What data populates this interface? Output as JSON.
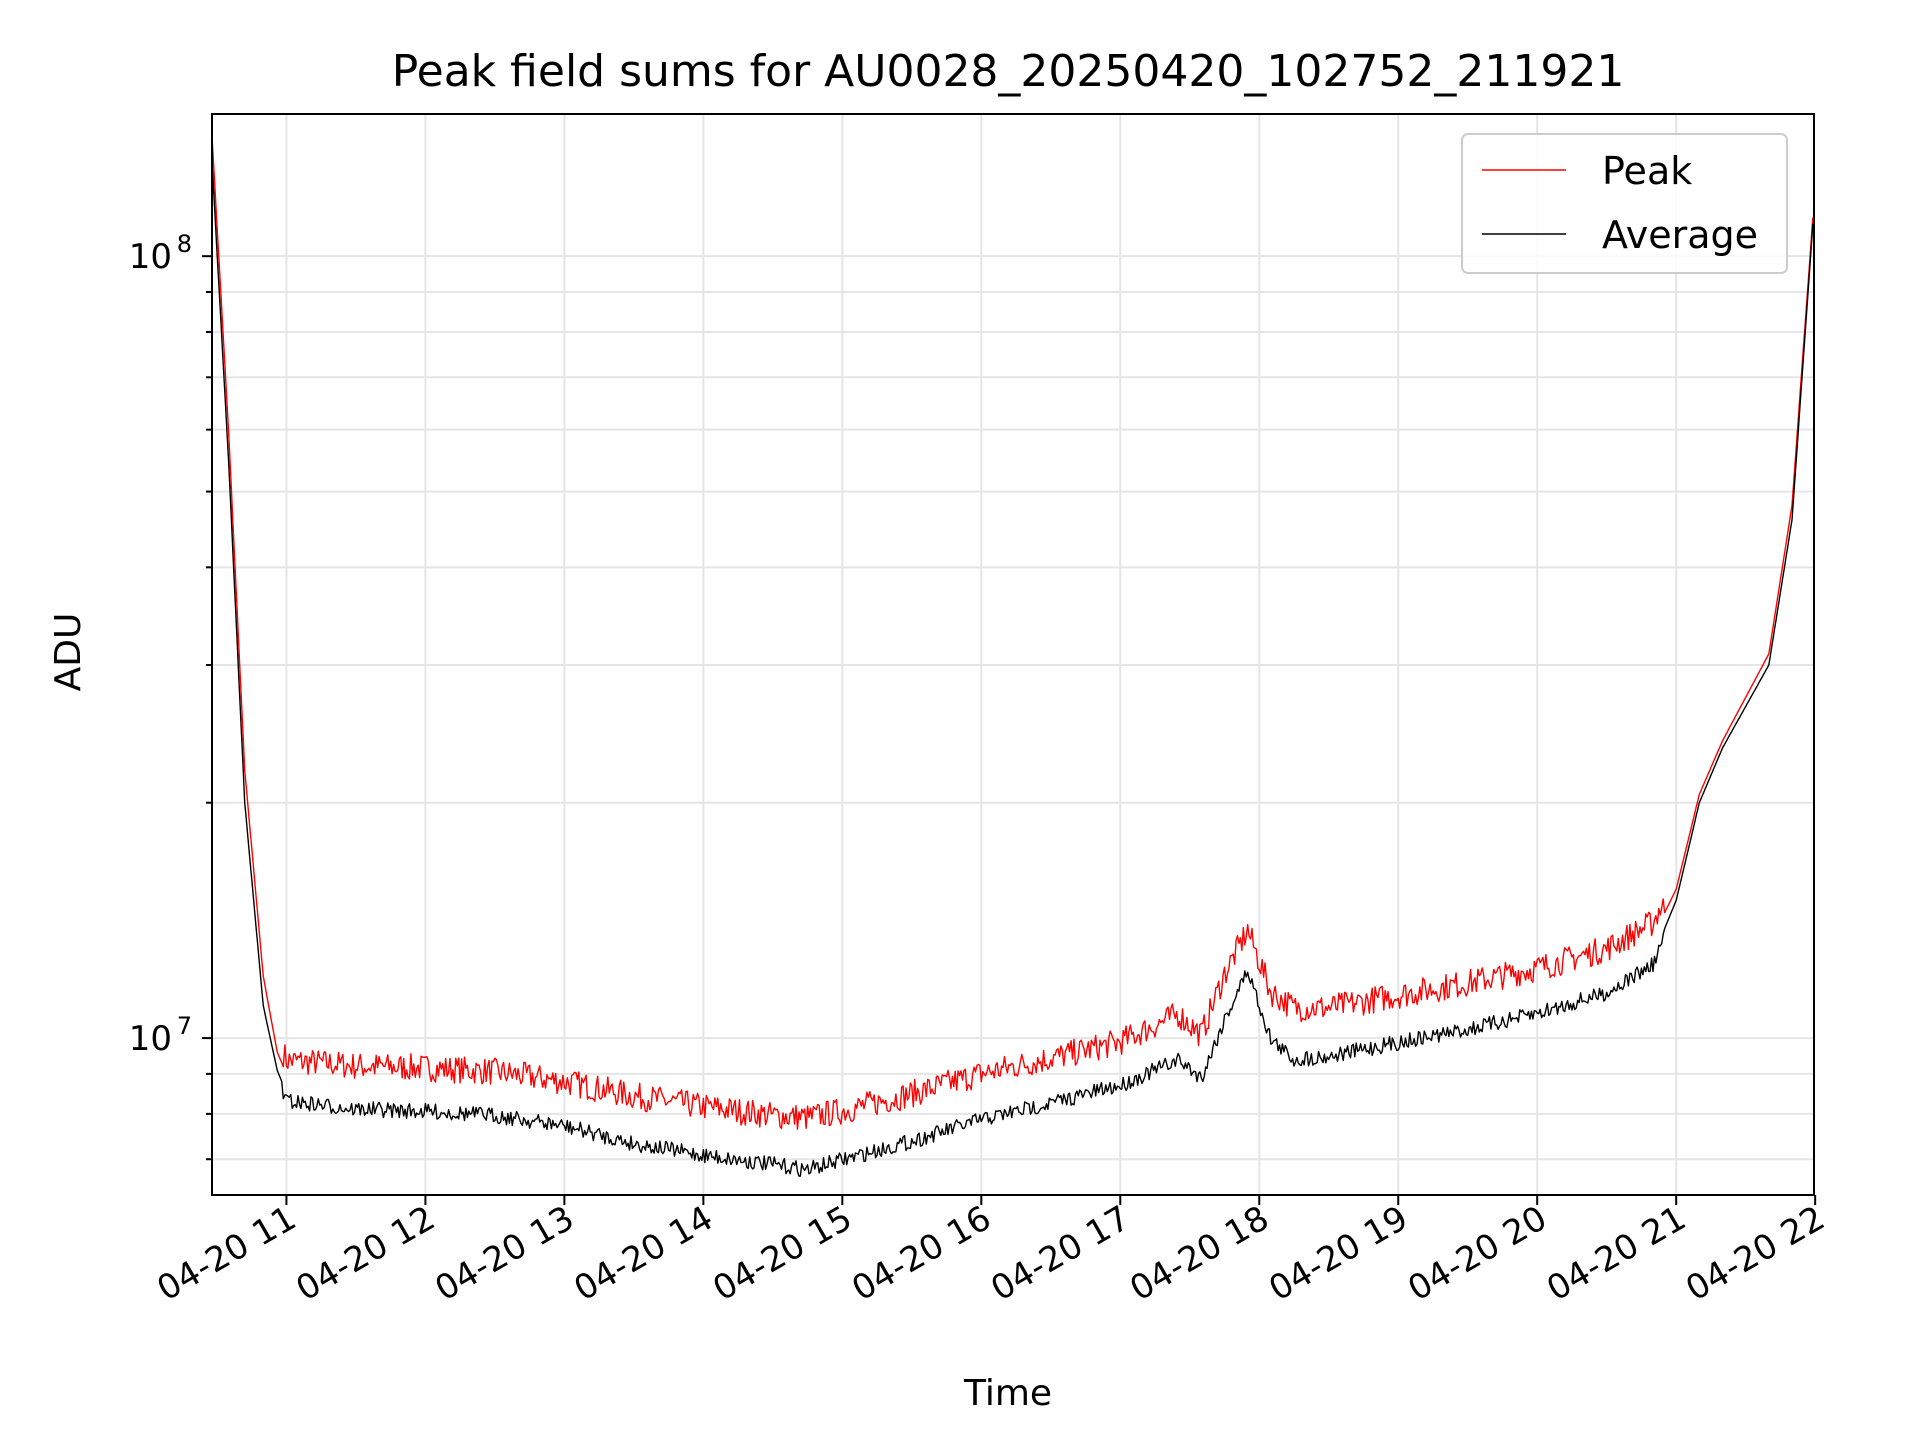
{
  "chart_data": {
    "type": "line",
    "title": "Peak field sums for AU0028_20250420_102752_211921",
    "xlabel": "Time",
    "ylabel": "ADU",
    "y_scale": "log",
    "ylim": [
      6300000,
      152000000
    ],
    "xlim": [
      "2025-04-20 10:27:52",
      "2025-04-20 21:59:30"
    ],
    "grid": true,
    "legend_position": "top-right",
    "x_tick_labels": [
      "04-20 11",
      "04-20 12",
      "04-20 13",
      "04-20 14",
      "04-20 15",
      "04-20 16",
      "04-20 17",
      "04-20 18",
      "04-20 19",
      "04-20 20",
      "04-20 21",
      "04-20 22"
    ],
    "x_tick_times": [
      "2025-04-20 11:00",
      "2025-04-20 12:00",
      "2025-04-20 13:00",
      "2025-04-20 14:00",
      "2025-04-20 15:00",
      "2025-04-20 16:00",
      "2025-04-20 17:00",
      "2025-04-20 18:00",
      "2025-04-20 19:00",
      "2025-04-20 20:00",
      "2025-04-20 21:00",
      "2025-04-20 22:00"
    ],
    "y_ticks": [
      {
        "value": 10000000,
        "label_base": "10",
        "label_exp": "7"
      },
      {
        "value": 100000000,
        "label_base": "10",
        "label_exp": "8"
      }
    ],
    "series": [
      {
        "name": "Peak",
        "color": "#ff0000",
        "x": [
          "2025-04-20 10:28",
          "2025-04-20 10:35",
          "2025-04-20 10:42",
          "2025-04-20 10:50",
          "2025-04-20 10:56",
          "2025-04-20 11:00",
          "2025-04-20 11:30",
          "2025-04-20 12:00",
          "2025-04-20 12:30",
          "2025-04-20 13:00",
          "2025-04-20 13:30",
          "2025-04-20 14:00",
          "2025-04-20 14:30",
          "2025-04-20 14:45",
          "2025-04-20 15:00",
          "2025-04-20 15:30",
          "2025-04-20 16:00",
          "2025-04-20 16:30",
          "2025-04-20 17:00",
          "2025-04-20 17:25",
          "2025-04-20 17:35",
          "2025-04-20 17:45",
          "2025-04-20 17:55",
          "2025-04-20 18:05",
          "2025-04-20 18:15",
          "2025-04-20 18:30",
          "2025-04-20 19:00",
          "2025-04-20 19:30",
          "2025-04-20 20:00",
          "2025-04-20 20:30",
          "2025-04-20 20:50",
          "2025-04-20 21:00",
          "2025-04-20 21:10",
          "2025-04-20 21:20",
          "2025-04-20 21:40",
          "2025-04-20 21:50",
          "2025-04-20 21:59"
        ],
        "values": [
          140000000,
          60000000,
          22000000,
          12000000,
          9600000,
          9000000,
          8850000,
          8800000,
          8700000,
          8450000,
          8100000,
          7850000,
          7650000,
          7600000,
          7750000,
          8150000,
          8650000,
          9050000,
          9500000,
          10300000,
          9700000,
          11600000,
          13200000,
          11000000,
          10500000,
          10500000,
          10900000,
          11300000,
          11800000,
          12500000,
          13500000,
          15500000,
          20500000,
          24000000,
          31000000,
          48000000,
          112000000
        ]
      },
      {
        "name": "Average",
        "color": "#000000",
        "x": [
          "2025-04-20 10:28",
          "2025-04-20 10:35",
          "2025-04-20 10:42",
          "2025-04-20 10:50",
          "2025-04-20 10:56",
          "2025-04-20 11:00",
          "2025-04-20 11:30",
          "2025-04-20 12:00",
          "2025-04-20 12:30",
          "2025-04-20 13:00",
          "2025-04-20 13:30",
          "2025-04-20 14:00",
          "2025-04-20 14:30",
          "2025-04-20 14:45",
          "2025-04-20 15:00",
          "2025-04-20 15:30",
          "2025-04-20 16:00",
          "2025-04-20 16:30",
          "2025-04-20 17:00",
          "2025-04-20 17:25",
          "2025-04-20 17:35",
          "2025-04-20 17:45",
          "2025-04-20 17:55",
          "2025-04-20 18:05",
          "2025-04-20 18:15",
          "2025-04-20 18:30",
          "2025-04-20 19:00",
          "2025-04-20 19:30",
          "2025-04-20 20:00",
          "2025-04-20 20:30",
          "2025-04-20 20:50",
          "2025-04-20 21:00",
          "2025-04-20 21:10",
          "2025-04-20 21:20",
          "2025-04-20 21:40",
          "2025-04-20 21:50",
          "2025-04-20 21:59"
        ],
        "values": [
          130000000,
          55000000,
          20000000,
          11000000,
          9100000,
          8500000,
          8300000,
          8250000,
          8150000,
          7900000,
          7500000,
          7250000,
          7050000,
          6950000,
          7150000,
          7550000,
          8050000,
          8450000,
          8900000,
          9600000,
          9100000,
          10800000,
          12500000,
          10200000,
          9600000,
          9700000,
          10100000,
          10500000,
          11000000,
          11700000,
          12700000,
          15000000,
          20000000,
          23500000,
          30000000,
          46000000,
          110000000
        ]
      }
    ]
  }
}
